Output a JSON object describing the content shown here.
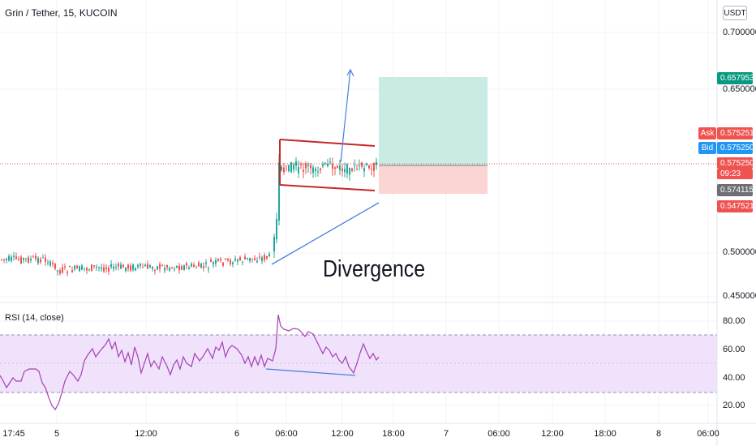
{
  "header": {
    "symbol_title": "Grin / Tether, 15, KUCOIN",
    "currency_label": "USDT"
  },
  "price_axis": {
    "ticks": [
      "0.700000",
      "0.650000",
      "0.500000",
      "0.450000"
    ]
  },
  "price_tags": {
    "target": "0.657953",
    "ask_label": "Ask",
    "ask": "0.575251",
    "bid_label": "Bid",
    "bid": "0.575250",
    "last": "0.575250",
    "countdown": "09:23",
    "entry": "0.574115",
    "stop": "0.547521"
  },
  "annotation": {
    "text": "Divergence"
  },
  "rsi": {
    "title": "RSI (14, close)",
    "ticks": [
      "80.00",
      "60.00",
      "40.00",
      "20.00"
    ]
  },
  "time_axis": {
    "labels": [
      "17:45",
      "5",
      "12:00",
      "6",
      "06:00",
      "12:00",
      "18:00",
      "7",
      "06:00",
      "12:00",
      "18:00",
      "8",
      "06:00"
    ]
  },
  "colors": {
    "up": "#26a69a",
    "down": "#ef5350",
    "channel": "#c62828",
    "trendline": "#4a7fe0",
    "rsi_line": "#a53fb5",
    "rsi_band": "#f0e2fb",
    "target_zone": "#c8ebe4",
    "stop_zone": "#fbd4d4",
    "ask": "#ef5350",
    "bid": "#2196f3",
    "entry_tag": "#6d6f74",
    "target_tag": "#089981"
  },
  "chart_data": {
    "type": "candlestick",
    "symbol": "Grin / Tether",
    "interval": "15",
    "exchange": "KUCOIN",
    "price_axis_ticks": [
      0.7,
      0.65,
      0.5,
      0.45
    ],
    "segments": [
      {
        "from_time": "17:45",
        "to_time": "6 03:00",
        "approx_range": [
          0.47,
          0.49
        ]
      },
      {
        "from_time": "6 03:00",
        "to_time": "6 04:00",
        "approx_range": [
          0.49,
          0.59
        ]
      },
      {
        "from_time": "6 04:00",
        "to_time": "6 16:30",
        "approx_range": [
          0.565,
          0.59
        ]
      }
    ],
    "last_price": 0.57525,
    "ask": 0.575251,
    "bid": 0.57525,
    "position": {
      "entry": 0.574115,
      "target": 0.657953,
      "stop": 0.547521
    },
    "rsi": {
      "length": 14,
      "source": "close",
      "bands": [
        70,
        30
      ],
      "axis_ticks": [
        80,
        60,
        40,
        20
      ]
    }
  }
}
